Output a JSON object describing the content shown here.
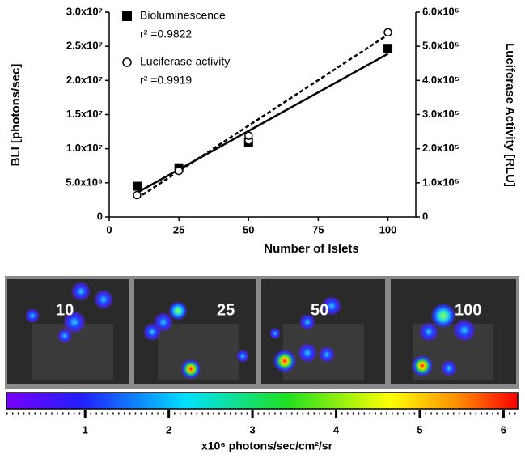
{
  "chart_data": {
    "type": "scatter",
    "xlabel": "Number of Islets",
    "ylabel": "BLI [photons/sec]",
    "y2label": "Luciferase Activity [RLU]",
    "xlim": [
      0,
      110
    ],
    "xticks": [
      0,
      25,
      50,
      75,
      100
    ],
    "ylim": [
      0,
      30000000
    ],
    "yticks": [
      0,
      {
        "value": 5000000,
        "label": "5.0x10⁶"
      },
      {
        "value": 10000000,
        "label": "1.0x10⁷"
      },
      {
        "value": 15000000,
        "label": "1.5x10⁷"
      },
      {
        "value": 20000000,
        "label": "2.0x10⁷"
      },
      {
        "value": 25000000,
        "label": "2.5x10⁷"
      },
      {
        "value": 30000000,
        "label": "3.0x10⁷"
      }
    ],
    "y2lim": [
      0,
      600000
    ],
    "y2ticks": [
      0,
      {
        "value": 100000,
        "label": "1.0x10⁵"
      },
      {
        "value": 200000,
        "label": "2.0x10⁵"
      },
      {
        "value": 300000,
        "label": "3.0x10⁵"
      },
      {
        "value": 400000,
        "label": "4.0x10⁵"
      },
      {
        "value": 500000,
        "label": "5.0x10⁵"
      },
      {
        "value": 600000,
        "label": "6.0x10⁵"
      }
    ],
    "series": [
      {
        "name": "Bioluminescence",
        "annotation": "r² =0.9822",
        "marker": "square",
        "color": "#000000",
        "x": [
          10,
          25,
          50,
          100
        ],
        "values": [
          4500000,
          7200000,
          10900000,
          24700000
        ],
        "fit": {
          "style": "solid",
          "x": [
            10,
            100
          ],
          "values": [
            3560000,
            23900000
          ]
        }
      },
      {
        "name": "Luciferase activity",
        "annotation": "r² =0.9919",
        "marker": "circle",
        "color": "#000000",
        "axis": "y2",
        "x": [
          10,
          25,
          50,
          50,
          100
        ],
        "values": [
          64000,
          135000,
          224000,
          238000,
          541000
        ],
        "fit": {
          "style": "dashed",
          "x": [
            10,
            100
          ],
          "values": [
            54500,
            534000
          ]
        }
      }
    ]
  },
  "images": {
    "labels": [
      "10",
      "25",
      "50",
      "100"
    ]
  },
  "colorbar": {
    "lim": [
      0.06,
      6.17
    ],
    "ticks": [
      1,
      2,
      3,
      4,
      5,
      6
    ],
    "label": "x10⁶  photons/sec/cm²/sr"
  }
}
